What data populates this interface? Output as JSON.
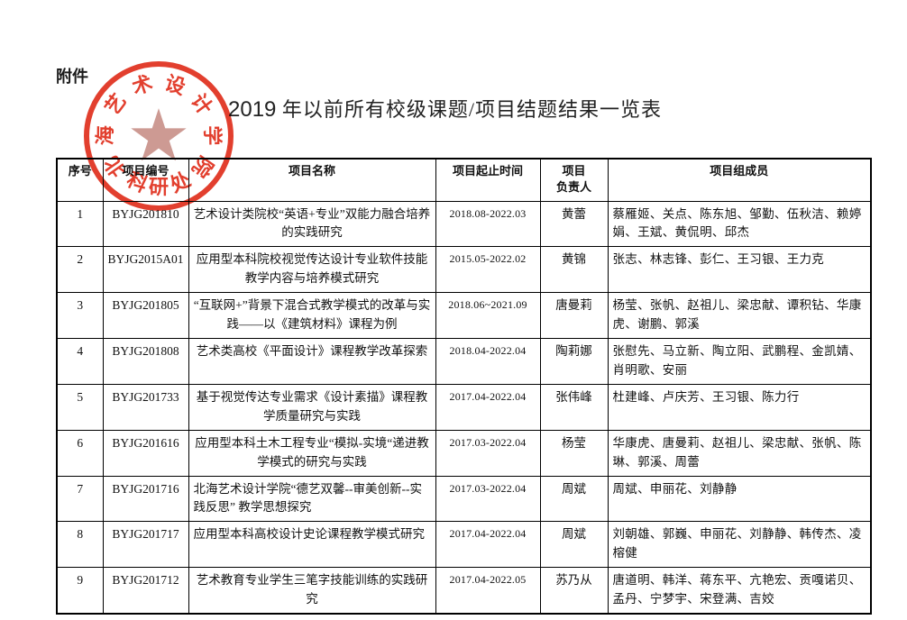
{
  "page": {
    "attachment_label": "附件",
    "title_year": "2019",
    "title_rest": " 年以前所有校级课题/项目结题结果一览表"
  },
  "stamp": {
    "arc_text": "北海艺术设计学院",
    "bottom_text": "科研处",
    "star_icon": "★",
    "ink_color": "#e0301e",
    "star_color": "#c9928b"
  },
  "table": {
    "headers": {
      "no": "序号",
      "code": "项目编号",
      "name": "项目名称",
      "period": "项目起止时间",
      "leader": "项目\n负责人",
      "members": "项目组成员"
    },
    "rows": [
      {
        "no": "1",
        "code": "BYJG201810",
        "name": "艺术设计类院校“英语+专业”双能力融合培养的实践研究",
        "period": "2018.08-2022.03",
        "leader": "黄蕾",
        "members": "蔡雁姬、关点、陈东旭、邹勤、伍秋洁、赖婷娟、王斌、黄侃明、邱杰"
      },
      {
        "no": "2",
        "code": "BYJG2015A01",
        "name": "应用型本科院校视觉传达设计专业软件技能教学内容与培养模式研究",
        "period": "2015.05-2022.02",
        "leader": "黄锦",
        "members": "张志、林志锋、彭仁、王习银、王力克"
      },
      {
        "no": "3",
        "code": "BYJG201805",
        "name": "“互联网+”背景下混合式教学模式的改革与实践——以《建筑材料》课程为例",
        "period": "2018.06~2021.09",
        "leader": "唐曼莉",
        "members": "杨莹、张帆、赵祖儿、梁忠献、谭积钻、华康虎、谢鹏、郭溪"
      },
      {
        "no": "4",
        "code": "BYJG201808",
        "name": "艺术类高校《平面设计》课程教学改革探索",
        "period": "2018.04-2022.04",
        "leader": "陶莉娜",
        "members": "张慰先、马立新、陶立阳、武鹏程、金凯婧、肖明歌、安丽"
      },
      {
        "no": "5",
        "code": "BYJG201733",
        "name": "基于视觉传达专业需求《设计素描》课程教学质量研究与实践",
        "period": "2017.04-2022.04",
        "leader": "张伟峰",
        "members": "杜建峰、卢庆芳、王习银、陈力行"
      },
      {
        "no": "6",
        "code": "BYJG201616",
        "name": "应用型本科土木工程专业“模拟-实境“递进教学模式的研究与实践",
        "period": "2017.03-2022.04",
        "leader": "杨莹",
        "members": "华康虎、唐曼莉、赵祖儿、梁忠献、张帆、陈琳、郭溪、周蕾"
      },
      {
        "no": "7",
        "code": "BYJG201716",
        "name": "北海艺术设计学院“德艺双馨--审美创新--实践反思” 教学思想探究",
        "period": "2017.03-2022.04",
        "leader": "周斌",
        "members": "周斌、申丽花、刘静静"
      },
      {
        "no": "8",
        "code": "BYJG201717",
        "name": "应用型本科高校设计史论课程教学模式研究",
        "period": "2017.04-2022.04",
        "leader": "周斌",
        "members": "刘朝雄、郭巍、申丽花、刘静静、韩传杰、凌榕健"
      },
      {
        "no": "9",
        "code": "BYJG201712",
        "name": "艺术教育专业学生三笔字技能训练的实践研究",
        "period": "2017.04-2022.05",
        "leader": "苏乃从",
        "members": "唐道明、韩洋、蒋东平、亢艳宏、贡嘎诺贝、孟丹、宁梦宇、宋登满、吉姣"
      }
    ]
  }
}
